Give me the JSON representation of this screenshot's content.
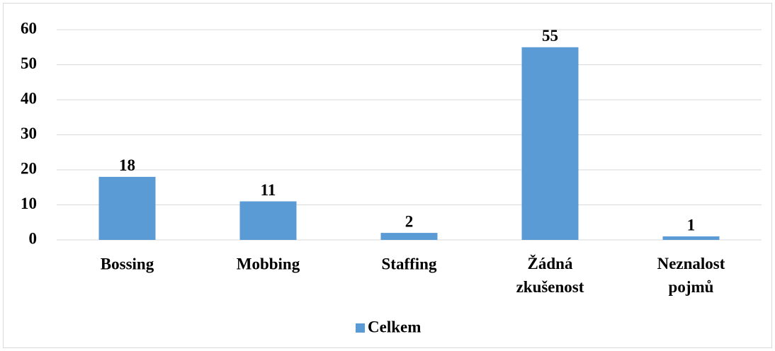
{
  "chart_data": {
    "type": "bar",
    "categories": [
      "Bossing",
      "Mobbing",
      "Staffing",
      "Žádná zkušenost",
      "Neznalost pojmů"
    ],
    "series": [
      {
        "name": "Celkem",
        "color": "#5b9bd5",
        "values": [
          18,
          11,
          2,
          55,
          1
        ]
      }
    ],
    "ylim": [
      0,
      60
    ],
    "yticks": [
      0,
      10,
      20,
      30,
      40,
      50,
      60
    ],
    "grid": true,
    "legend": "bottom"
  }
}
